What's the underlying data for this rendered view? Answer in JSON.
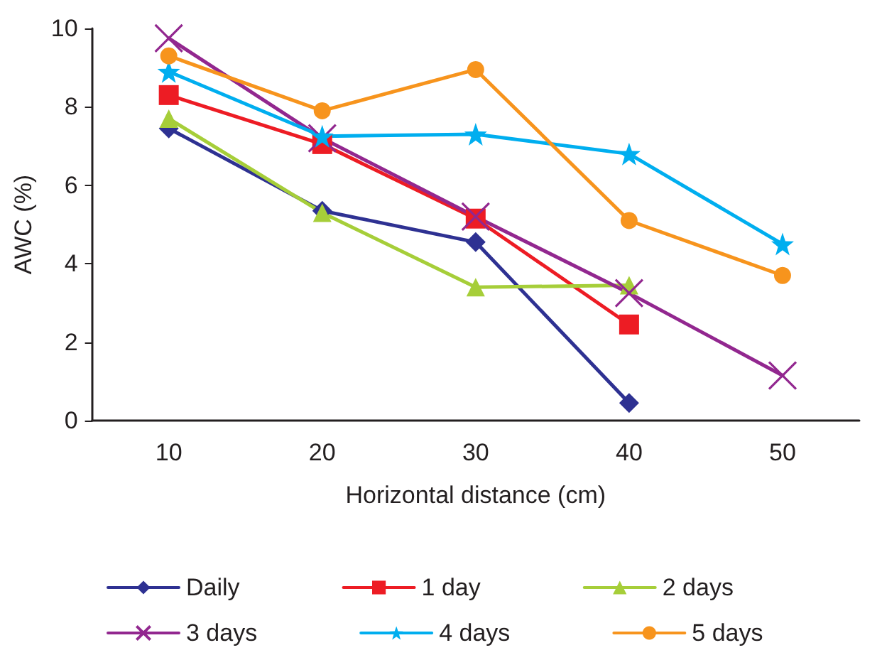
{
  "chart_data": {
    "type": "line",
    "xlabel": "Horizontal distance (cm)",
    "ylabel": "AWC (%)",
    "categories": [
      "10",
      "20",
      "30",
      "40",
      "50"
    ],
    "ylim": [
      0,
      10
    ],
    "yticks": [
      0,
      2,
      4,
      6,
      8,
      10
    ],
    "grid": false,
    "legend": "bottom",
    "line_style": "solid",
    "series": [
      {
        "name": "Daily",
        "color": "#2e3192",
        "marker": "diamond",
        "values": [
          7.45,
          5.35,
          4.55,
          0.45,
          null
        ]
      },
      {
        "name": "1 day",
        "color": "#ed1c24",
        "marker": "square",
        "values": [
          8.3,
          7.05,
          5.15,
          2.45,
          null
        ]
      },
      {
        "name": "2 days",
        "color": "#a6ce39",
        "marker": "triangle",
        "values": [
          7.7,
          5.3,
          3.4,
          3.45,
          null
        ]
      },
      {
        "name": "3 days",
        "color": "#92278f",
        "marker": "cross",
        "values": [
          9.75,
          7.2,
          5.2,
          3.25,
          1.15
        ]
      },
      {
        "name": "4 days",
        "color": "#00aeef",
        "marker": "star",
        "values": [
          8.9,
          7.25,
          7.3,
          6.8,
          4.5
        ]
      },
      {
        "name": "5 days",
        "color": "#f7941d",
        "marker": "circle",
        "values": [
          9.3,
          7.9,
          8.95,
          5.1,
          3.7
        ]
      }
    ]
  }
}
